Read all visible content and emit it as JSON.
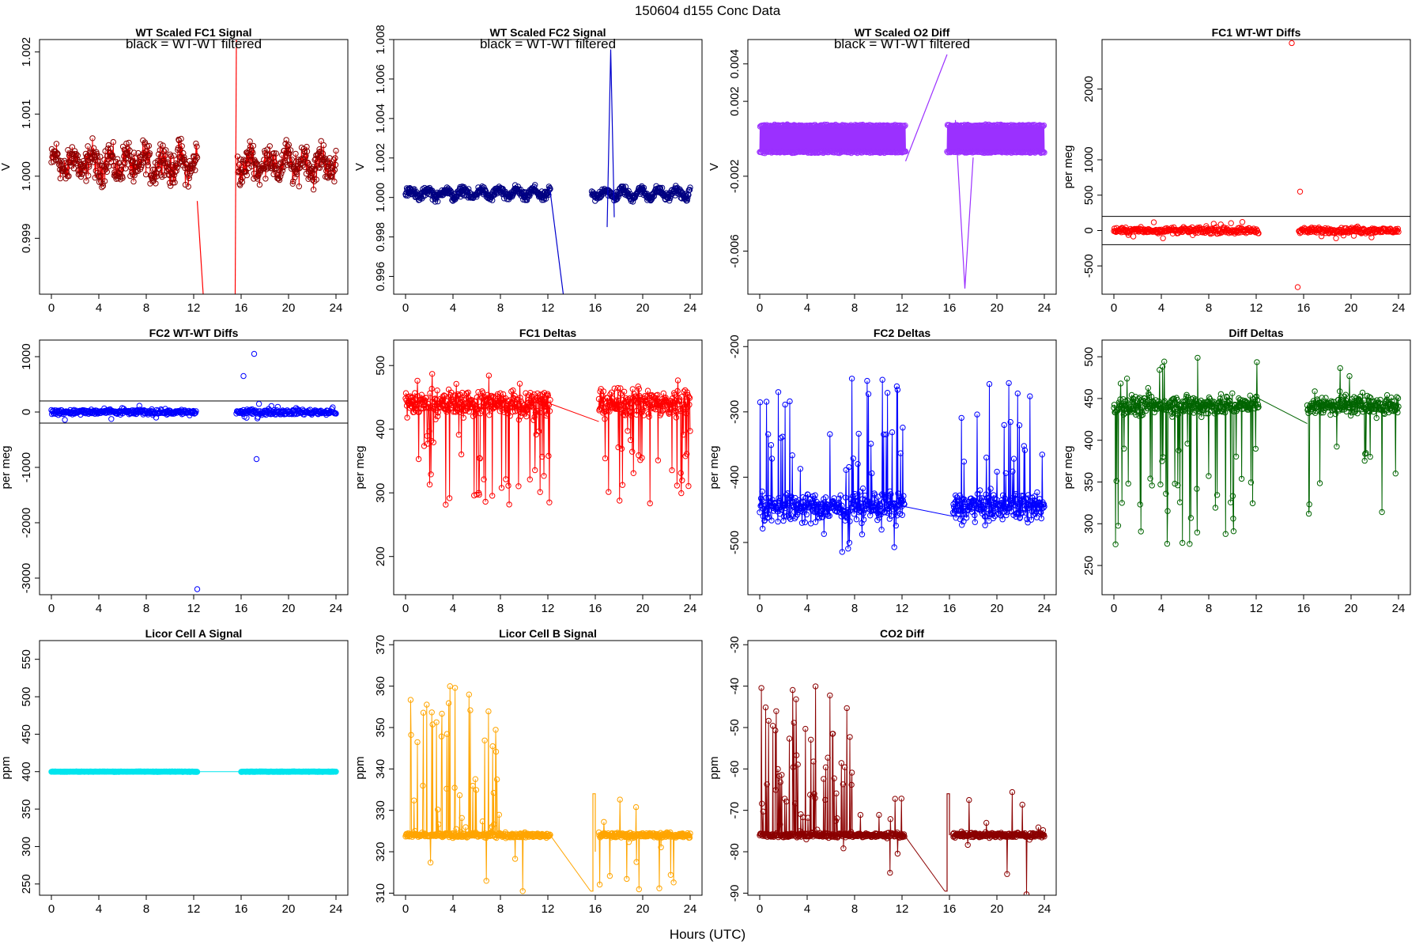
{
  "figure": {
    "title": "150604   d155   Conc Data",
    "xlabel": "Hours (UTC)"
  },
  "chart_data": [
    {
      "id": "fc1",
      "type": "line",
      "title": "WT Scaled FC1 Signal",
      "annotation": "black = WT-WT filtered",
      "ylabel": "V",
      "xlim": [
        0,
        24
      ],
      "ylim": [
        0.9981,
        1.0022
      ],
      "xticks": [
        0,
        4,
        8,
        12,
        16,
        20,
        24
      ],
      "yticks": [
        0.999,
        1.0,
        1.001,
        1.002
      ],
      "ytick_labels": [
        "0.999",
        "1.000",
        "1.001",
        "1.002"
      ],
      "color": "#ff0000",
      "marker_color": "#8b0000",
      "style": "noisy-band",
      "base": 1.0002,
      "noise": 0.00022,
      "amp": 0.00015,
      "segments": [
        [
          0,
          12.3
        ],
        [
          15.7,
          24
        ]
      ],
      "markers": true,
      "extra_lines": [
        {
          "x": [
            12.3,
            12.8
          ],
          "y": [
            0.9996,
            0.9981
          ]
        },
        {
          "x": [
            15.5,
            15.6
          ],
          "y": [
            0.9981,
            1.0022
          ]
        }
      ]
    },
    {
      "id": "fc2",
      "type": "line",
      "title": "WT Scaled FC2 Signal",
      "annotation": "black = WT-WT filtered",
      "ylabel": "V",
      "xlim": [
        0,
        24
      ],
      "ylim": [
        0.9951,
        1.008
      ],
      "xticks": [
        0,
        4,
        8,
        12,
        16,
        20,
        24
      ],
      "yticks": [
        0.996,
        0.998,
        1.0,
        1.002,
        1.004,
        1.006,
        1.008
      ],
      "ytick_labels": [
        "0.996",
        "0.998",
        "1.000",
        "1.002",
        "1.004",
        "1.006",
        "1.008"
      ],
      "color": "#0000cd",
      "marker_color": "#000080",
      "style": "noisy-band",
      "base": 1.0002,
      "noise": 0.0002,
      "amp": 0.0002,
      "segments": [
        [
          0,
          12.2
        ],
        [
          15.7,
          24
        ]
      ],
      "markers": true,
      "extra_lines": [
        {
          "x": [
            12.2,
            13.3
          ],
          "y": [
            1.0003,
            0.9951
          ]
        },
        {
          "x": [
            17.0,
            17.3,
            17.6
          ],
          "y": [
            0.9985,
            1.0075,
            0.999
          ]
        }
      ]
    },
    {
      "id": "o2",
      "type": "line",
      "title": "WT Scaled O2 Diff",
      "annotation": "black = WT-WT filtered",
      "ylabel": "V",
      "xlim": [
        0,
        24
      ],
      "ylim": [
        -0.0083,
        0.0053
      ],
      "xticks": [
        0,
        4,
        8,
        12,
        16,
        20,
        24
      ],
      "yticks": [
        -0.006,
        -0.002,
        0.002,
        0.004
      ],
      "ytick_labels": [
        "-0.006",
        "-0.002",
        "0.002",
        "0.004"
      ],
      "color": "#9b30ff",
      "marker_color": "#9b30ff",
      "style": "twin-band",
      "base": 0.0,
      "band": 0.0007,
      "segments": [
        [
          0,
          12.3
        ],
        [
          15.8,
          24
        ]
      ],
      "markers": true,
      "extra_lines": [
        {
          "x": [
            12.3,
            15.8
          ],
          "y": [
            -0.0012,
            0.0045
          ]
        },
        {
          "x": [
            16.5,
            17.3,
            18.0
          ],
          "y": [
            0.001,
            -0.008,
            -0.001
          ]
        }
      ]
    },
    {
      "id": "fc1wt",
      "type": "scatter",
      "title": "FC1 WT-WT Diffs",
      "ylabel": "per meg",
      "xlim": [
        0,
        24
      ],
      "ylim": [
        -900,
        2700
      ],
      "xticks": [
        0,
        4,
        8,
        12,
        16,
        20,
        24
      ],
      "yticks": [
        -500,
        0,
        500,
        1000,
        2000
      ],
      "ytick_labels": [
        "-500",
        "0",
        "500",
        "1000",
        "2000"
      ],
      "color": "#ff0000",
      "hlines": [
        200,
        -200
      ],
      "base": 0,
      "noise": 35,
      "segments": [
        [
          0,
          12.2
        ],
        [
          15.6,
          24
        ]
      ],
      "outliers": [
        [
          15.0,
          2650
        ],
        [
          15.5,
          -800
        ],
        [
          15.7,
          550
        ]
      ]
    },
    {
      "id": "fc2wt",
      "type": "scatter",
      "title": "FC2 WT-WT Diffs",
      "ylabel": "per meg",
      "xlim": [
        0,
        24
      ],
      "ylim": [
        -3300,
        1300
      ],
      "xticks": [
        0,
        4,
        8,
        12,
        16,
        20,
        24
      ],
      "yticks": [
        -3000,
        -2000,
        -1000,
        0,
        1000
      ],
      "ytick_labels": [
        "-3000",
        "-2000",
        "-1000",
        "0",
        "1000"
      ],
      "color": "#0000ff",
      "hlines": [
        200,
        -200
      ],
      "base": 0,
      "noise": 40,
      "segments": [
        [
          0,
          12.2
        ],
        [
          15.6,
          24
        ]
      ],
      "outliers": [
        [
          12.3,
          -3200
        ],
        [
          17.1,
          1050
        ],
        [
          16.2,
          650
        ],
        [
          17.3,
          -850
        ]
      ]
    },
    {
      "id": "fc1d",
      "type": "line",
      "title": "FC1 Deltas",
      "ylabel": "per meg",
      "xlim": [
        0,
        24
      ],
      "ylim": [
        140,
        540
      ],
      "xticks": [
        0,
        4,
        8,
        12,
        16,
        20,
        24
      ],
      "yticks": [
        200,
        300,
        400,
        500
      ],
      "ytick_labels": [
        "200",
        "300",
        "400",
        "500"
      ],
      "color": "#ff0000",
      "marker_color": "#ff0000",
      "style": "spiky",
      "base": 440,
      "noise": 18,
      "spike": -160,
      "segments": [
        [
          0,
          12.2
        ],
        [
          16.3,
          24
        ]
      ],
      "markers": true,
      "bridge": [
        [
          12.2,
          440
        ],
        [
          16.3,
          412
        ]
      ]
    },
    {
      "id": "fc2d",
      "type": "line",
      "title": "FC2 Deltas",
      "ylabel": "per meg",
      "xlim": [
        0,
        24
      ],
      "ylim": [
        -580,
        -190
      ],
      "xticks": [
        0,
        4,
        8,
        12,
        16,
        20,
        24
      ],
      "yticks": [
        -500,
        -400,
        -300,
        -200
      ],
      "ytick_labels": [
        "-500",
        "-400",
        "-300",
        "-200"
      ],
      "color": "#0000ff",
      "marker_color": "#0000ff",
      "style": "spiky",
      "base": -445,
      "noise": 18,
      "spike": 200,
      "segments": [
        [
          0,
          12.2
        ],
        [
          16.3,
          24
        ]
      ],
      "markers": true,
      "bridge": [
        [
          12.2,
          -445
        ],
        [
          16.3,
          -460
        ]
      ]
    },
    {
      "id": "diffd",
      "type": "line",
      "title": "Diff Deltas",
      "ylabel": "per meg",
      "xlim": [
        0,
        24
      ],
      "ylim": [
        215,
        520
      ],
      "xticks": [
        0,
        4,
        8,
        12,
        16,
        20,
        24
      ],
      "yticks": [
        250,
        300,
        350,
        400,
        450,
        500
      ],
      "ytick_labels": [
        "250",
        "300",
        "350",
        "400",
        "450",
        "500"
      ],
      "color": "#006400",
      "marker_color": "#006400",
      "style": "spiky",
      "base": 442,
      "noise": 10,
      "spike": -170,
      "segments": [
        [
          0,
          12.2
        ],
        [
          16.3,
          24
        ]
      ],
      "markers": true,
      "bridge": [
        [
          12.2,
          450
        ],
        [
          16.3,
          420
        ]
      ]
    },
    {
      "id": "licA",
      "type": "line",
      "title": "Licor Cell A Signal",
      "ylabel": "ppm",
      "xlim": [
        0,
        24
      ],
      "ylim": [
        235,
        575
      ],
      "xticks": [
        0,
        4,
        8,
        12,
        16,
        20,
        24
      ],
      "yticks": [
        250,
        300,
        350,
        400,
        450,
        500,
        550
      ],
      "ytick_labels": [
        "250",
        "300",
        "350",
        "400",
        "450",
        "500",
        "550"
      ],
      "color": "#00e5ee",
      "marker_color": "#00e5ee",
      "style": "flat",
      "base": 400,
      "noise": 0.3,
      "segments": [
        [
          0,
          12.3
        ],
        [
          16,
          24
        ]
      ],
      "markers": true,
      "bridge": [
        [
          12.3,
          400
        ],
        [
          16,
          400
        ]
      ]
    },
    {
      "id": "licB",
      "type": "line",
      "title": "Licor Cell B Signal",
      "ylabel": "ppm",
      "xlim": [
        0,
        24
      ],
      "ylim": [
        309.5,
        371
      ],
      "xticks": [
        0,
        4,
        8,
        12,
        16,
        20,
        24
      ],
      "yticks": [
        310,
        320,
        330,
        340,
        350,
        360,
        370
      ],
      "ytick_labels": [
        "310",
        "320",
        "330",
        "340",
        "350",
        "360",
        "370"
      ],
      "color": "#ffa500",
      "marker_color": "#ffa500",
      "style": "spiky-up",
      "base": 324,
      "noise": 0.5,
      "spike": 40,
      "segments": [
        [
          0,
          12.2
        ],
        [
          16.3,
          24
        ]
      ],
      "markers": true,
      "bridge": [
        [
          12.2,
          324
        ],
        [
          15.6,
          310.5
        ]
      ],
      "extra_lines": [
        {
          "x": [
            15.6,
            15.8,
            15.8,
            16.0,
            16.0
          ],
          "y": [
            310.5,
            310.5,
            334,
            334,
            320
          ]
        }
      ]
    },
    {
      "id": "co2",
      "type": "line",
      "title": "CO2 Diff",
      "ylabel": "ppm",
      "xlim": [
        0,
        24
      ],
      "ylim": [
        -90.5,
        -29
      ],
      "xticks": [
        0,
        4,
        8,
        12,
        16,
        20,
        24
      ],
      "yticks": [
        -90,
        -80,
        -70,
        -60,
        -50,
        -40,
        -30
      ],
      "ytick_labels": [
        "-90",
        "-80",
        "-70",
        "-60",
        "-50",
        "-40",
        "-30"
      ],
      "color": "#8b0000",
      "marker_color": "#8b0000",
      "style": "spiky-up",
      "base": -76,
      "noise": 0.5,
      "spike": 40,
      "segments": [
        [
          0,
          12.2
        ],
        [
          16.3,
          24
        ]
      ],
      "markers": true,
      "bridge": [
        [
          12.2,
          -76
        ],
        [
          15.6,
          -89.5
        ]
      ],
      "extra_lines": [
        {
          "x": [
            15.6,
            15.8,
            15.8,
            16.0,
            16.0
          ],
          "y": [
            -89.5,
            -89.5,
            -66,
            -66,
            -76
          ]
        }
      ]
    }
  ]
}
